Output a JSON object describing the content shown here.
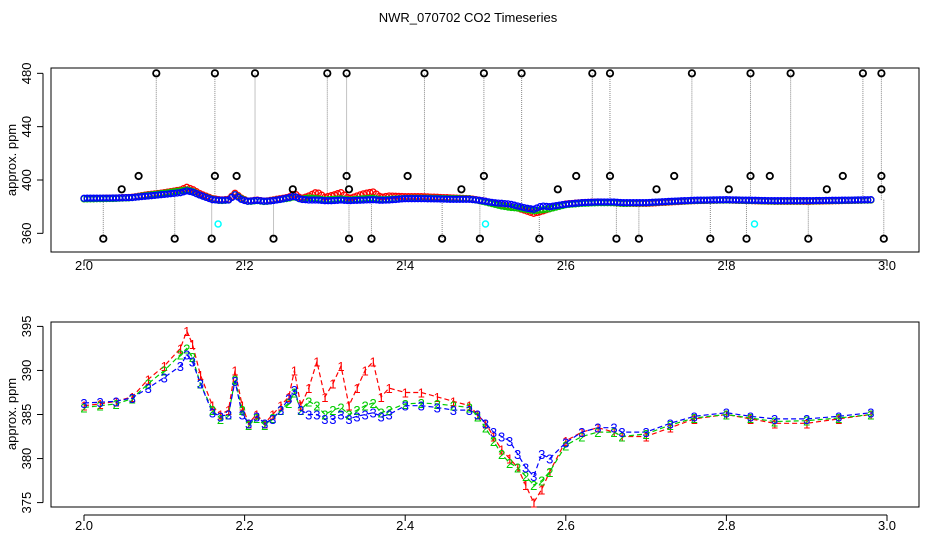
{
  "title": "NWR_070702  CO2 Timeseries",
  "colors": {
    "series_1": "#ff0000",
    "series_2": "#00cc00",
    "series_3": "#0000ff",
    "series_4": "#00ffff",
    "outlier": "#000000",
    "spike_line": "#888888"
  },
  "chart_data": [
    {
      "type": "scatter",
      "title": "",
      "xlabel": "",
      "ylabel": "approx. ppm",
      "xlim": [
        2.0,
        3.0
      ],
      "ylim": [
        346,
        484
      ],
      "x_ticks": [
        "2.0",
        "2.2",
        "2.4",
        "2.6",
        "2.8",
        "3.0"
      ],
      "y_ticks": [
        "360",
        "400",
        "440",
        "480"
      ],
      "grid": false,
      "marker": "open circle",
      "baseline_series": "smooth ~385 ppm CO2 record for series 1-3 (overlaid, same values as lower panel)",
      "series_4_points": [
        {
          "x": 2.167,
          "y": 367
        },
        {
          "x": 2.5,
          "y": 367
        },
        {
          "x": 2.835,
          "y": 367
        }
      ],
      "high_spikes": [
        2.09,
        2.163,
        2.213,
        2.303,
        2.327,
        2.424,
        2.498,
        2.545,
        2.633,
        2.655,
        2.757,
        2.83,
        2.88,
        2.97,
        2.993
      ],
      "high_spike_value": 480,
      "mid_high_points": [
        {
          "x": 2.047,
          "y": 393
        },
        {
          "x": 2.068,
          "y": 403
        },
        {
          "x": 2.163,
          "y": 403
        },
        {
          "x": 2.19,
          "y": 403
        },
        {
          "x": 2.26,
          "y": 393
        },
        {
          "x": 2.327,
          "y": 403
        },
        {
          "x": 2.33,
          "y": 393
        },
        {
          "x": 2.403,
          "y": 403
        },
        {
          "x": 2.47,
          "y": 393
        },
        {
          "x": 2.498,
          "y": 403
        },
        {
          "x": 2.59,
          "y": 393
        },
        {
          "x": 2.613,
          "y": 403
        },
        {
          "x": 2.655,
          "y": 403
        },
        {
          "x": 2.713,
          "y": 393
        },
        {
          "x": 2.735,
          "y": 403
        },
        {
          "x": 2.803,
          "y": 393
        },
        {
          "x": 2.83,
          "y": 403
        },
        {
          "x": 2.854,
          "y": 403
        },
        {
          "x": 2.925,
          "y": 393
        },
        {
          "x": 2.945,
          "y": 403
        },
        {
          "x": 2.993,
          "y": 403
        },
        {
          "x": 2.993,
          "y": 393
        }
      ],
      "low_points": [
        {
          "x": 2.024,
          "y": 356
        },
        {
          "x": 2.113,
          "y": 356
        },
        {
          "x": 2.159,
          "y": 356
        },
        {
          "x": 2.236,
          "y": 356
        },
        {
          "x": 2.33,
          "y": 356
        },
        {
          "x": 2.358,
          "y": 356
        },
        {
          "x": 2.446,
          "y": 356
        },
        {
          "x": 2.493,
          "y": 356
        },
        {
          "x": 2.567,
          "y": 356
        },
        {
          "x": 2.663,
          "y": 356
        },
        {
          "x": 2.691,
          "y": 356
        },
        {
          "x": 2.78,
          "y": 356
        },
        {
          "x": 2.825,
          "y": 356
        },
        {
          "x": 2.902,
          "y": 356
        },
        {
          "x": 2.996,
          "y": 356
        }
      ]
    },
    {
      "type": "line",
      "title": "",
      "xlabel": "",
      "ylabel": "approx. ppm",
      "xlim": [
        2.0,
        3.0
      ],
      "ylim": [
        374.5,
        395.5
      ],
      "x_ticks": [
        "2.0",
        "2.2",
        "2.4",
        "2.6",
        "2.8",
        "3.0"
      ],
      "y_ticks": [
        "375",
        "380",
        "385",
        "390",
        "395"
      ],
      "grid": false,
      "series": [
        {
          "name": "1",
          "x": [
            2.0,
            2.02,
            2.04,
            2.06,
            2.08,
            2.1,
            2.12,
            2.128,
            2.135,
            2.145,
            2.16,
            2.17,
            2.18,
            2.188,
            2.197,
            2.205,
            2.215,
            2.225,
            2.235,
            2.245,
            2.255,
            2.262,
            2.27,
            2.28,
            2.29,
            2.3,
            2.31,
            2.32,
            2.33,
            2.34,
            2.35,
            2.36,
            2.37,
            2.38,
            2.4,
            2.42,
            2.44,
            2.46,
            2.48,
            2.49,
            2.5,
            2.51,
            2.52,
            2.53,
            2.54,
            2.55,
            2.56,
            2.57,
            2.58,
            2.6,
            2.62,
            2.64,
            2.66,
            2.67,
            2.7,
            2.73,
            2.76,
            2.8,
            2.83,
            2.86,
            2.9,
            2.94,
            2.98
          ],
          "values": [
            386.0,
            386.2,
            386.5,
            387.0,
            389.0,
            390.5,
            392.5,
            394.5,
            393.0,
            389.5,
            386.0,
            385.0,
            385.5,
            390.0,
            386.0,
            384.0,
            385.0,
            384.0,
            385.0,
            386.0,
            387.0,
            390.0,
            386.0,
            388.0,
            391.0,
            387.0,
            388.5,
            390.5,
            386.0,
            388.0,
            390.0,
            391.0,
            387.0,
            388.0,
            387.5,
            387.5,
            387.0,
            386.5,
            386.0,
            385.0,
            384.0,
            382.5,
            381.0,
            380.0,
            379.0,
            377.0,
            375.0,
            376.5,
            378.5,
            382.0,
            383.0,
            383.5,
            383.0,
            382.5,
            382.5,
            383.5,
            384.5,
            385.0,
            384.5,
            384.0,
            384.0,
            384.5,
            385.0
          ]
        },
        {
          "name": "2",
          "x": [
            2.0,
            2.02,
            2.04,
            2.06,
            2.08,
            2.1,
            2.12,
            2.128,
            2.135,
            2.145,
            2.16,
            2.17,
            2.18,
            2.188,
            2.197,
            2.205,
            2.215,
            2.225,
            2.235,
            2.245,
            2.255,
            2.262,
            2.27,
            2.28,
            2.29,
            2.3,
            2.31,
            2.32,
            2.33,
            2.34,
            2.35,
            2.36,
            2.37,
            2.38,
            2.4,
            2.42,
            2.44,
            2.46,
            2.48,
            2.49,
            2.5,
            2.51,
            2.52,
            2.53,
            2.54,
            2.55,
            2.56,
            2.57,
            2.58,
            2.6,
            2.62,
            2.64,
            2.66,
            2.67,
            2.7,
            2.73,
            2.76,
            2.8,
            2.83,
            2.86,
            2.9,
            2.94,
            2.98
          ],
          "values": [
            385.8,
            386.0,
            386.2,
            386.8,
            388.5,
            390.0,
            391.8,
            392.5,
            391.5,
            388.5,
            385.5,
            384.5,
            385.0,
            389.0,
            385.5,
            383.8,
            384.6,
            383.8,
            384.6,
            385.5,
            386.3,
            387.5,
            385.5,
            386.5,
            386.0,
            385.0,
            385.5,
            385.8,
            385.0,
            385.5,
            386.0,
            386.3,
            385.2,
            385.5,
            386.2,
            386.3,
            386.2,
            386.0,
            385.8,
            384.8,
            383.5,
            382.0,
            380.5,
            379.5,
            379.0,
            378.0,
            377.0,
            377.5,
            378.5,
            381.5,
            382.5,
            383.0,
            383.0,
            382.5,
            382.8,
            383.8,
            384.6,
            385.0,
            384.6,
            384.2,
            384.3,
            384.6,
            385.0
          ]
        },
        {
          "name": "3",
          "x": [
            2.0,
            2.02,
            2.04,
            2.06,
            2.08,
            2.1,
            2.12,
            2.128,
            2.135,
            2.145,
            2.16,
            2.17,
            2.18,
            2.188,
            2.197,
            2.205,
            2.215,
            2.225,
            2.235,
            2.245,
            2.255,
            2.262,
            2.27,
            2.28,
            2.29,
            2.3,
            2.31,
            2.32,
            2.33,
            2.34,
            2.35,
            2.36,
            2.37,
            2.38,
            2.4,
            2.42,
            2.44,
            2.46,
            2.48,
            2.49,
            2.5,
            2.51,
            2.52,
            2.53,
            2.54,
            2.55,
            2.56,
            2.57,
            2.58,
            2.6,
            2.62,
            2.64,
            2.66,
            2.67,
            2.7,
            2.73,
            2.76,
            2.8,
            2.83,
            2.86,
            2.9,
            2.94,
            2.98
          ],
          "values": [
            386.3,
            386.4,
            386.5,
            386.9,
            388.0,
            389.2,
            390.5,
            391.8,
            391.0,
            388.5,
            385.2,
            384.8,
            385.0,
            388.8,
            385.0,
            384.0,
            384.8,
            384.0,
            384.5,
            385.5,
            386.8,
            387.8,
            385.5,
            385.0,
            385.0,
            384.5,
            384.5,
            385.0,
            384.5,
            384.8,
            385.0,
            385.2,
            384.8,
            385.0,
            386.0,
            386.0,
            385.8,
            385.5,
            385.5,
            385.0,
            384.0,
            383.0,
            382.5,
            382.0,
            380.5,
            379.0,
            378.0,
            380.5,
            380.0,
            381.8,
            383.0,
            383.5,
            383.5,
            383.0,
            383.0,
            384.0,
            384.8,
            385.2,
            384.8,
            384.5,
            384.5,
            384.8,
            385.2
          ]
        }
      ]
    }
  ]
}
